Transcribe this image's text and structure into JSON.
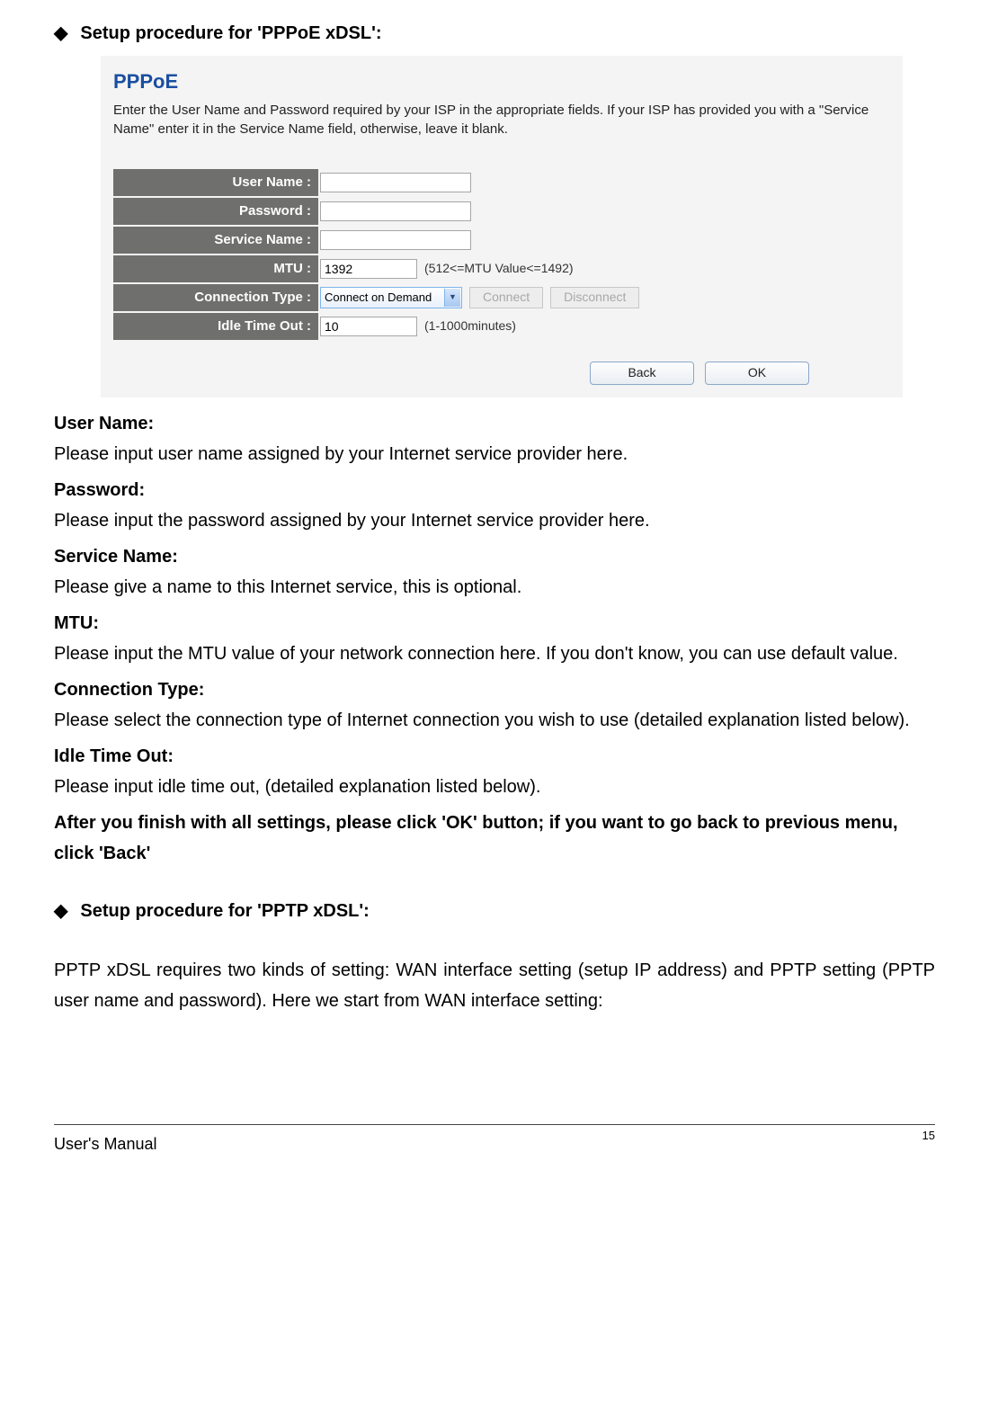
{
  "heading1": "Setup procedure for 'PPPoE xDSL':",
  "screenshot": {
    "title": "PPPoE",
    "subtitle": "Enter the User Name and Password required by your ISP in the appropriate fields. If your ISP has provided you with a \"Service Name\" enter it in the Service Name field, otherwise, leave it blank.",
    "rows": {
      "user_name_label": "User Name :",
      "password_label": "Password :",
      "service_name_label": "Service Name :",
      "mtu_label": "MTU :",
      "mtu_value": "1392",
      "mtu_hint": "(512<=MTU Value<=1492)",
      "conn_type_label": "Connection Type :",
      "conn_type_value": "Connect on Demand",
      "connect_btn": "Connect",
      "disconnect_btn": "Disconnect",
      "idle_label": "Idle Time Out :",
      "idle_value": "10",
      "idle_hint": "(1-1000minutes)"
    },
    "back_btn": "Back",
    "ok_btn": "OK"
  },
  "descriptions": [
    {
      "label": "User Name:",
      "text": "Please input user name assigned by your Internet service provider here."
    },
    {
      "label": "Password:",
      "text": "Please input the password assigned by your Internet service provider here."
    },
    {
      "label": "Service Name:",
      "text": "Please give a name to this Internet service, this is optional."
    },
    {
      "label": "MTU:",
      "text": "Please input the MTU value of your network connection here. If you don't know, you can use default value."
    },
    {
      "label": "Connection Type:",
      "text": "Please select the connection type of Internet connection you wish to use (detailed explanation listed below)."
    },
    {
      "label": "Idle Time Out:",
      "text": "Please input idle time out, (detailed explanation listed below)."
    }
  ],
  "finishNote": "After you finish with all settings, please click 'OK' button; if you want to go back to previous menu, click 'Back'",
  "heading2": "Setup procedure for 'PPTP xDSL':",
  "pptpParagraph": "PPTP xDSL requires two kinds of setting: WAN interface setting (setup IP address) and PPTP setting (PPTP user name and password). Here we start from WAN interface setting:",
  "footer": {
    "left": "User's Manual",
    "pageNum": "15"
  }
}
